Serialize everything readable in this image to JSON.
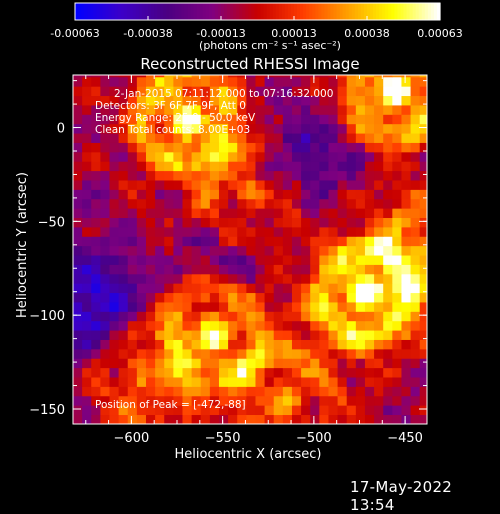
{
  "colorbar": {
    "ticks": [
      "-0.00063",
      "-0.00038",
      "-0.00013",
      "0.00013",
      "0.00038",
      "0.00063"
    ],
    "units_label": "(photons cm⁻² s⁻¹ asec⁻²)"
  },
  "chart_data": {
    "type": "heatmap",
    "title": "Reconstructed RHESSI Image",
    "xlabel": "Heliocentric X (arcsec)",
    "ylabel": "Heliocentric Y (arcsec)",
    "xlim": [
      -632,
      -438
    ],
    "ylim": [
      -158,
      28
    ],
    "xticks": [
      -600,
      -550,
      -500,
      -450
    ],
    "yticks": [
      0,
      -50,
      -100,
      -150
    ],
    "annotations": [
      "2-Jan-2015 07:11:12.000 to 07:16:32.000",
      "Detectors: 3F 6F 7F 9F, Att 0",
      "Energy Range: 25.0 - 50.0 keV",
      "Clean      Total counts: 8.00E+03"
    ],
    "peak_label": "Position of Peak = [-472,-88]",
    "colormap": [
      "#0000ff",
      "#3c00c8",
      "#4b0082",
      "#800080",
      "#c80000",
      "#ff3c00",
      "#ffa000",
      "#ffff00",
      "#ffffff"
    ],
    "bright_sources": [
      {
        "x": -570,
        "y": 5,
        "strength": 0.85
      },
      {
        "x": -455,
        "y": 20,
        "strength": 0.95
      },
      {
        "x": -535,
        "y": -35,
        "strength": 0.55
      },
      {
        "x": -472,
        "y": -88,
        "strength": 1.0
      },
      {
        "x": -555,
        "y": -110,
        "strength": 0.75
      },
      {
        "x": -435,
        "y": -65,
        "strength": 0.55
      },
      {
        "x": -595,
        "y": -130,
        "strength": 0.45
      },
      {
        "x": -515,
        "y": -145,
        "strength": 0.45
      }
    ],
    "dim_regions": [
      {
        "x": -620,
        "y": -95,
        "strength": 0.8
      },
      {
        "x": -505,
        "y": -15,
        "strength": 0.6
      },
      {
        "x": -545,
        "y": -65,
        "strength": 0.4
      }
    ]
  },
  "date_stamp": "17-May-2022 13:54"
}
